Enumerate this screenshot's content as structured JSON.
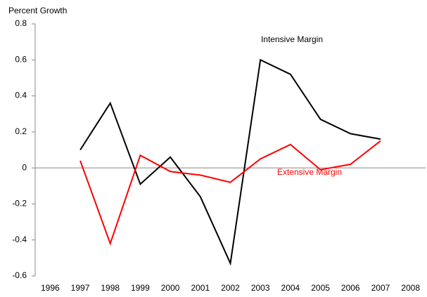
{
  "chart_data": {
    "type": "line",
    "y_label": "Percent Growth",
    "categories": [
      "1996",
      "1997",
      "1998",
      "1999",
      "2000",
      "2001",
      "2002",
      "2003",
      "2004",
      "2005",
      "2006",
      "2007",
      "2008"
    ],
    "series": [
      {
        "name": "Intensive Margin",
        "color": "#000000",
        "values": [
          null,
          0.1,
          0.36,
          -0.09,
          0.06,
          -0.16,
          -0.53,
          0.6,
          0.52,
          0.27,
          0.19,
          0.16,
          null
        ]
      },
      {
        "name": "Extensive Margin",
        "color": "#ff0000",
        "values": [
          null,
          0.04,
          -0.42,
          0.07,
          -0.02,
          -0.04,
          -0.08,
          0.05,
          0.13,
          -0.01,
          0.02,
          0.15,
          null
        ]
      }
    ],
    "ylim": [
      -0.6,
      0.8
    ],
    "yticks": [
      -0.6,
      -0.4,
      -0.2,
      0,
      0.2,
      0.4,
      0.6,
      0.8
    ]
  }
}
